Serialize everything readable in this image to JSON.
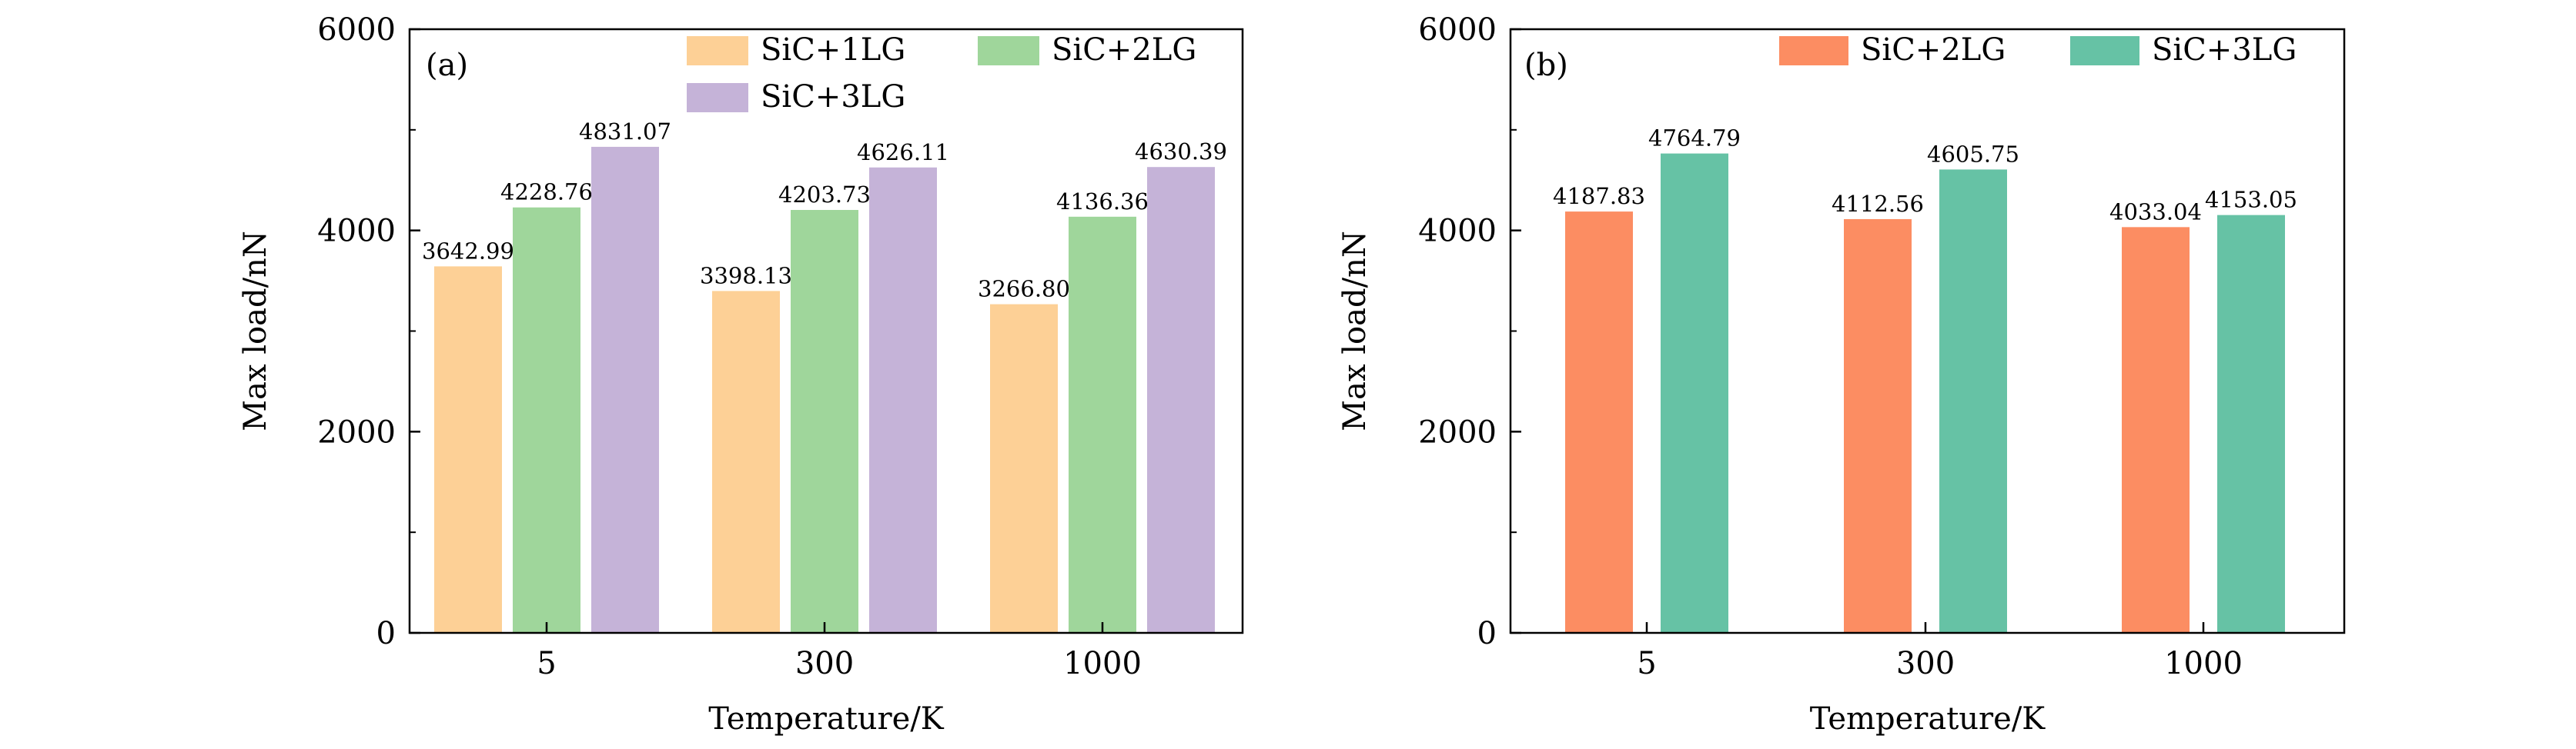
{
  "chart_data": [
    {
      "type": "bar",
      "panel_label": "(a)",
      "categories": [
        "5",
        "300",
        "1000"
      ],
      "series": [
        {
          "name": "SiC+1LG",
          "color": "#fdd096",
          "values": [
            3642.99,
            3398.13,
            3266.8
          ],
          "labels": [
            "3642.99",
            "3398.13",
            "3266.80"
          ]
        },
        {
          "name": "SiC+2LG",
          "color": "#9fd69b",
          "values": [
            4228.76,
            4203.73,
            4136.36
          ],
          "labels": [
            "4228.76",
            "4203.73",
            "4136.36"
          ]
        },
        {
          "name": "SiC+3LG",
          "color": "#c5b3d8",
          "values": [
            4831.07,
            4626.11,
            4630.39
          ],
          "labels": [
            "4831.07",
            "4626.11",
            "4630.39"
          ]
        }
      ],
      "xlabel": "Temperature/K",
      "ylabel": "Max load/nN",
      "ylim": [
        0,
        6000
      ],
      "yticks": [
        "0",
        "2000",
        "4000",
        "6000"
      ],
      "grid": false,
      "legend_position": "top-right"
    },
    {
      "type": "bar",
      "panel_label": "(b)",
      "categories": [
        "5",
        "300",
        "1000"
      ],
      "series": [
        {
          "name": "SiC+2LG",
          "color": "#fc8d62",
          "values": [
            4187.83,
            4112.56,
            4033.04
          ],
          "labels": [
            "4187.83",
            "4112.56",
            "4033.04"
          ]
        },
        {
          "name": "SiC+3LG",
          "color": "#66c2a5",
          "values": [
            4764.79,
            4605.75,
            4153.05
          ],
          "labels": [
            "4764.79",
            "4605.75",
            "4153.05"
          ]
        }
      ],
      "xlabel": "Temperature/K",
      "ylabel": "Max load/nN",
      "ylim": [
        0,
        6000
      ],
      "yticks": [
        "0",
        "2000",
        "4000",
        "6000"
      ],
      "grid": false,
      "legend_position": "top-right"
    }
  ]
}
